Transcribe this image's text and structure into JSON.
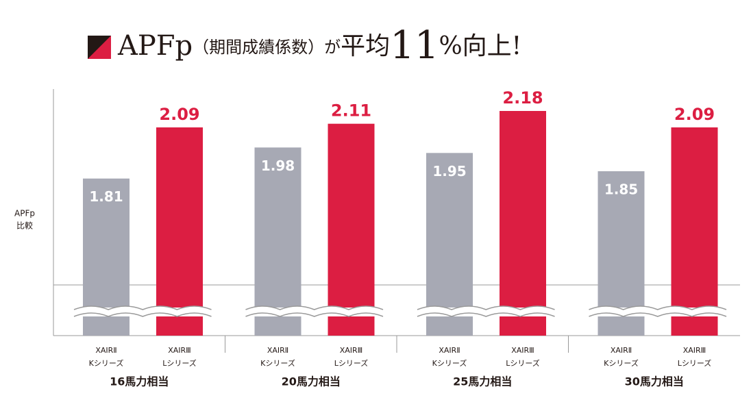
{
  "chart_data": {
    "type": "bar",
    "title": [
      "APFp",
      "（期間成績係数）が",
      "平均",
      "11",
      "%向上!"
    ],
    "y_label": [
      "APFp",
      "比較"
    ],
    "categories": [
      "16馬力相当",
      "20馬力相当",
      "25馬力相当",
      "30馬力相当"
    ],
    "series": [
      {
        "name": [
          "XAIRⅡ",
          "Kシリーズ"
        ],
        "color": "#a7a9b4",
        "values": [
          1.81,
          1.98,
          1.95,
          1.85
        ]
      },
      {
        "name": [
          "XAIRⅢ",
          "Lシリーズ"
        ],
        "color": "#dc1e42",
        "values": [
          2.09,
          2.11,
          2.18,
          2.09
        ]
      }
    ],
    "ylim": [
      0.95,
      2.3
    ]
  }
}
